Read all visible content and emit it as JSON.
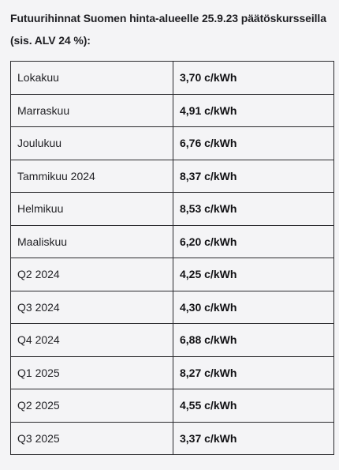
{
  "heading_line1": "Futuurihinnat Suomen hinta-alueelle 25.9.23 päätöskursseilla",
  "heading_line2": "(sis. ALV 24 %):",
  "rows": [
    {
      "period": "Lokakuu",
      "price": "3,70 c/kWh"
    },
    {
      "period": "Marraskuu",
      "price": "4,91 c/kWh"
    },
    {
      "period": "Joulukuu",
      "price": "6,76 c/kWh"
    },
    {
      "period": "Tammikuu 2024",
      "price": "8,37 c/kWh"
    },
    {
      "period": "Helmikuu",
      "price": "8,53 c/kWh"
    },
    {
      "period": "Maaliskuu",
      "price": "6,20 c/kWh"
    },
    {
      "period": "Q2 2024",
      "price": "4,25 c/kWh"
    },
    {
      "period": "Q3 2024",
      "price": "4,30 c/kWh"
    },
    {
      "period": "Q4 2024",
      "price": "6,88 c/kWh"
    },
    {
      "period": "Q1 2025",
      "price": "8,27 c/kWh"
    },
    {
      "period": "Q2 2025",
      "price": "4,55 c/kWh"
    },
    {
      "period": "Q3 2025",
      "price": "3,37 c/kWh"
    }
  ]
}
